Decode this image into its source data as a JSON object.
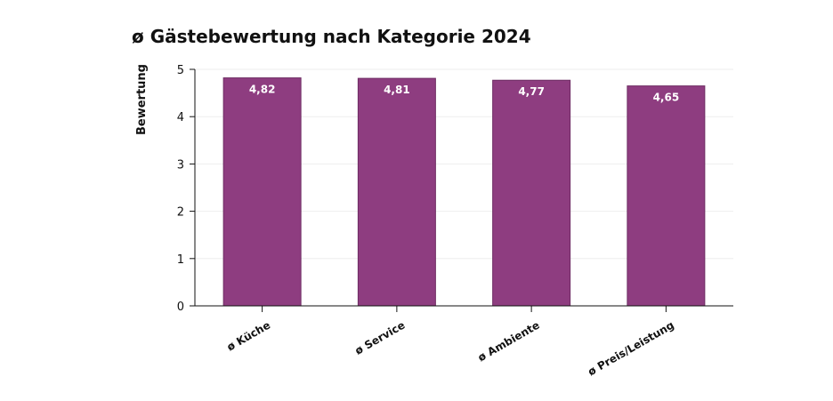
{
  "chart_data": {
    "type": "bar",
    "title": "ø Gästebewertung nach Kategorie 2024",
    "xlabel": "",
    "ylabel": "Bewertung",
    "ylim": [
      0,
      5
    ],
    "yticks": [
      "0",
      "1",
      "2",
      "3",
      "4",
      "5"
    ],
    "categories": [
      "ø Küche",
      "ø Service",
      "ø Ambiente",
      "ø Preis/Leistung"
    ],
    "values": [
      4.82,
      4.81,
      4.77,
      4.65
    ],
    "value_labels": [
      "4,82",
      "4,81",
      "4,77",
      "4,65"
    ],
    "bar_color": "#8e3d80",
    "grid": true,
    "legend": "none"
  }
}
